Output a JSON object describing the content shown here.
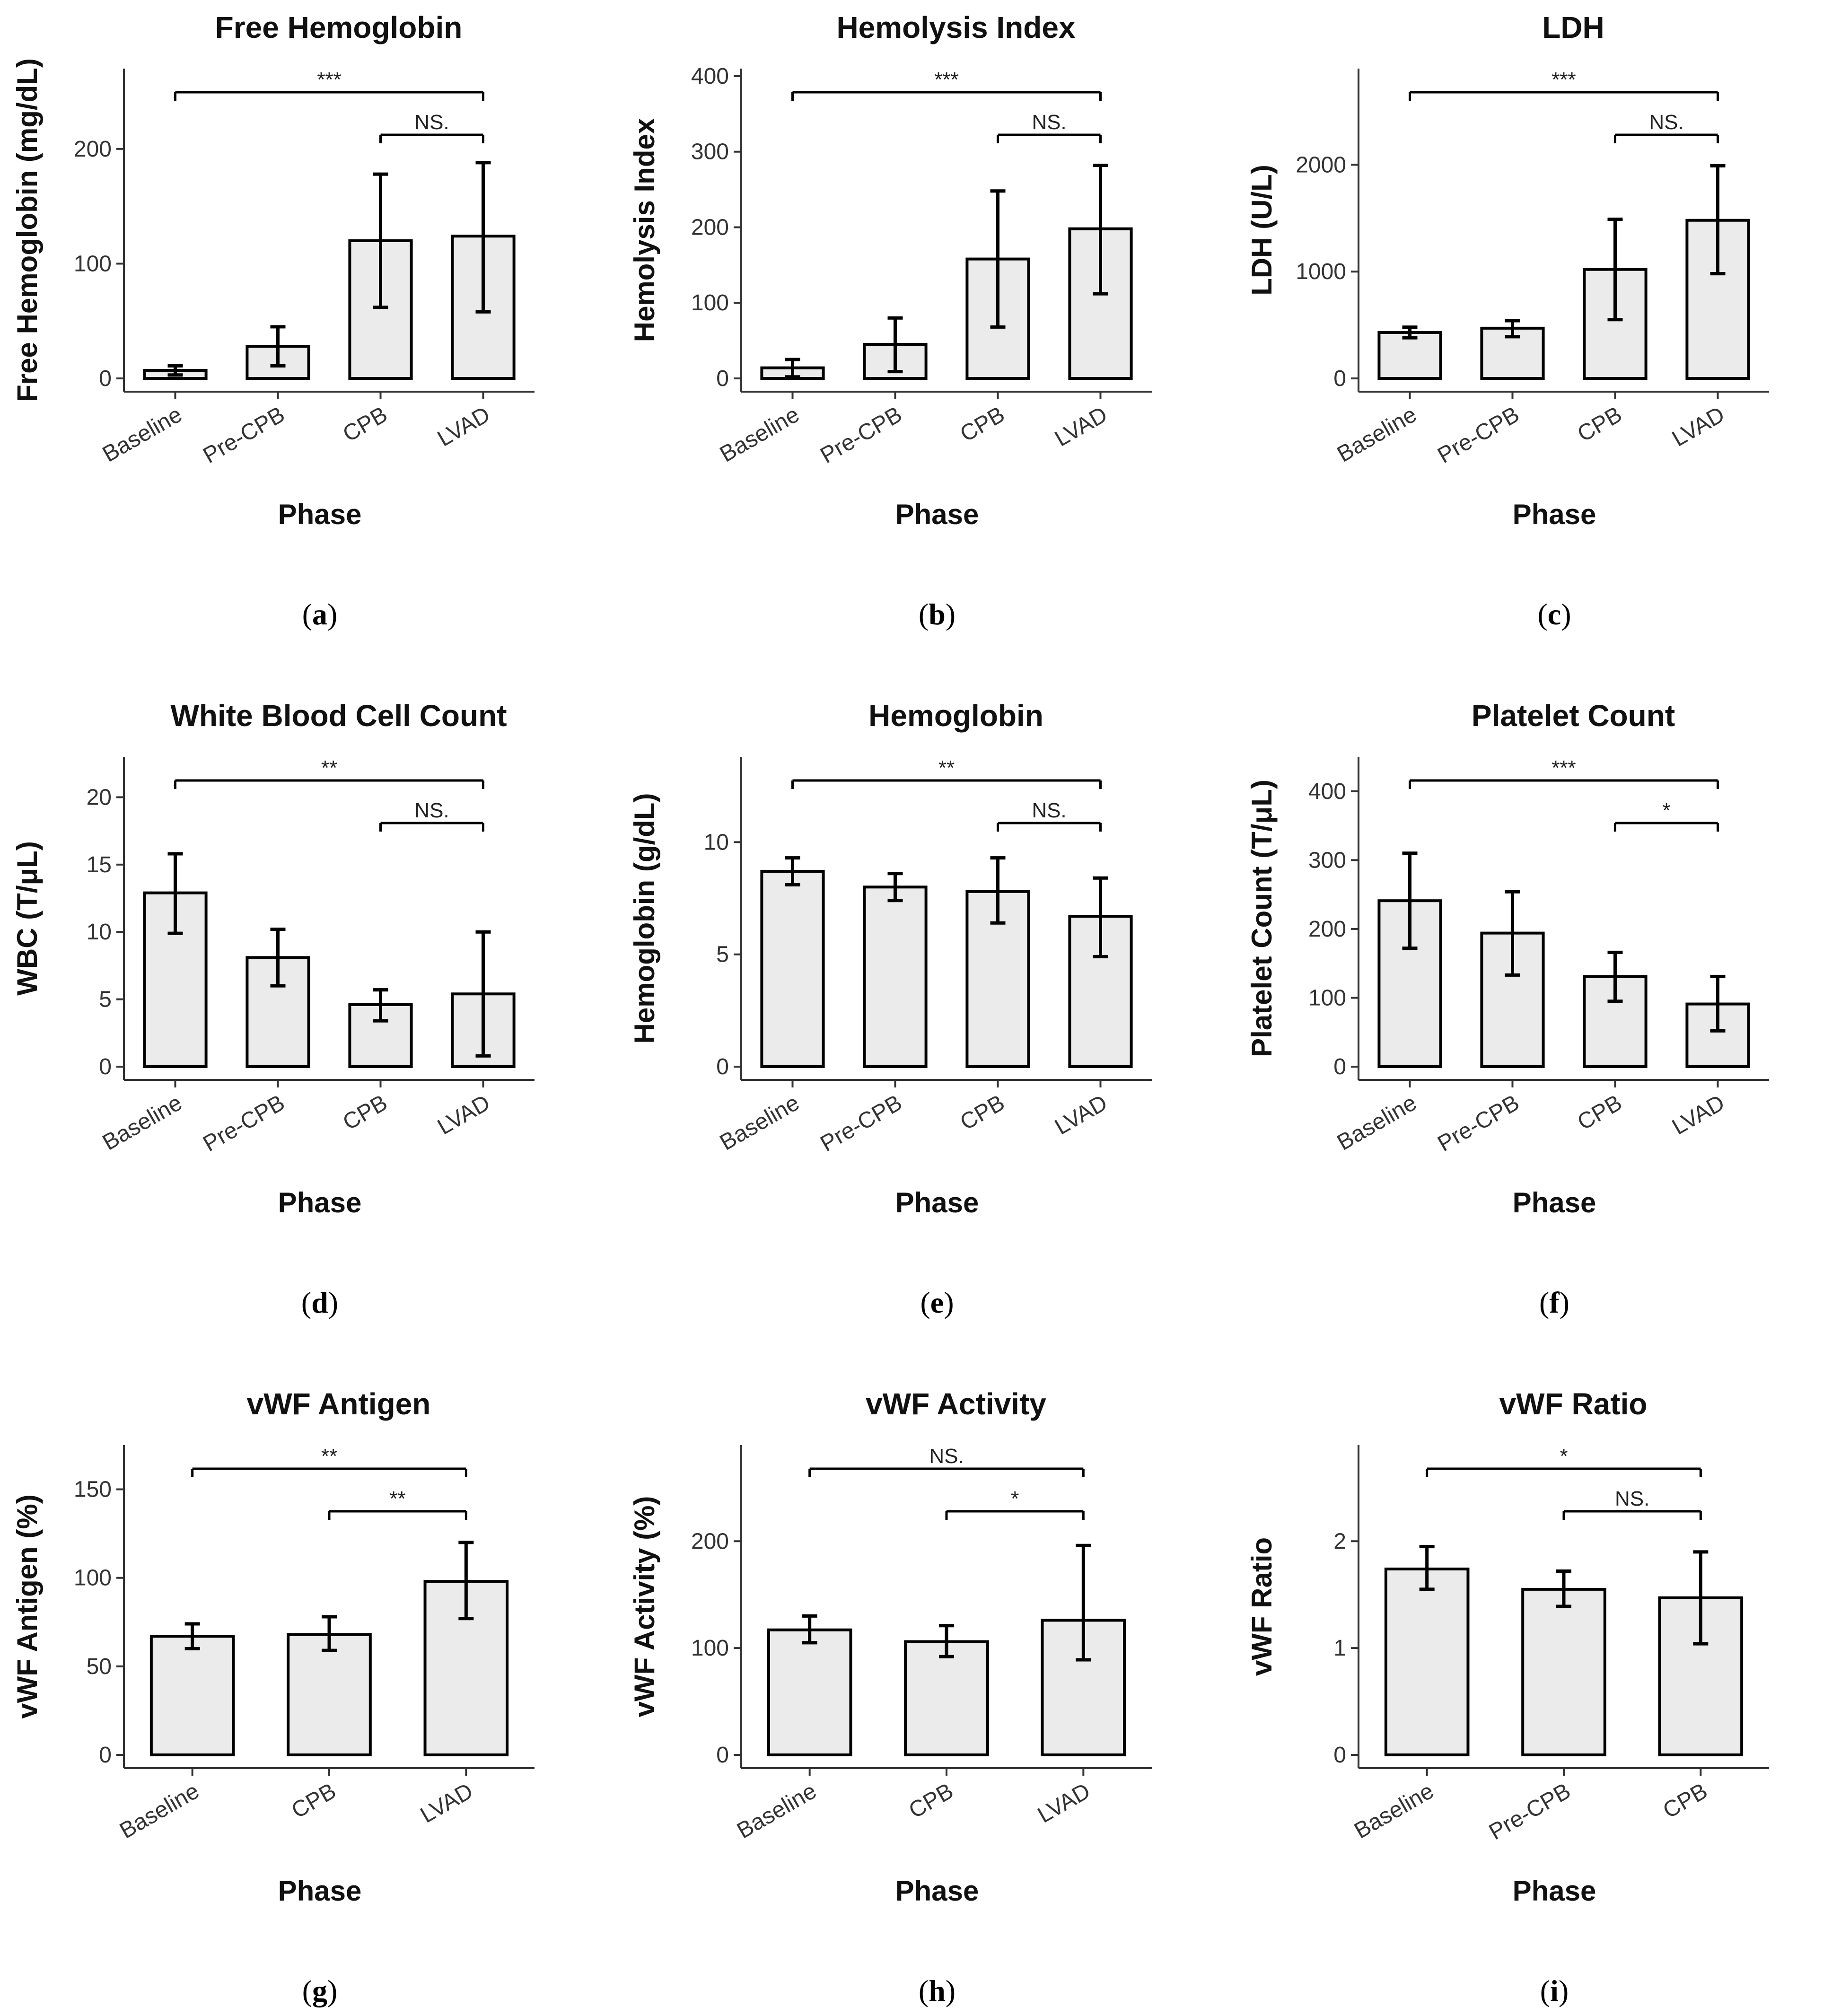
{
  "x_axis_title": "Phase",
  "chart_data": [
    {
      "panel": "a",
      "type": "bar",
      "title": "Free Hemoglobin",
      "xlabel": "Phase",
      "ylabel": "Free Hemoglobin (mg/dL)",
      "categories": [
        "Baseline",
        "Pre-CPB",
        "CPB",
        "LVAD"
      ],
      "values": [
        7,
        28,
        120,
        124
      ],
      "error_low": [
        3,
        11,
        62,
        58
      ],
      "error_high": [
        11,
        45,
        178,
        188
      ],
      "ylim": [
        0,
        270
      ],
      "yticks": [
        0,
        100,
        200
      ],
      "comparisons": [
        {
          "from": "Baseline",
          "to": "LVAD",
          "label": "***"
        },
        {
          "from": "CPB",
          "to": "LVAD",
          "label": "NS."
        }
      ]
    },
    {
      "panel": "b",
      "type": "bar",
      "title": "Hemolysis Index",
      "xlabel": "Phase",
      "ylabel": "Hemolysis Index",
      "categories": [
        "Baseline",
        "Pre-CPB",
        "CPB",
        "LVAD"
      ],
      "values": [
        14,
        45,
        158,
        198
      ],
      "error_low": [
        2,
        9,
        68,
        112
      ],
      "error_high": [
        25,
        80,
        248,
        282
      ],
      "ylim": [
        0,
        410
      ],
      "yticks": [
        0,
        100,
        200,
        300,
        400
      ],
      "comparisons": [
        {
          "from": "Baseline",
          "to": "LVAD",
          "label": "***"
        },
        {
          "from": "CPB",
          "to": "LVAD",
          "label": "NS."
        }
      ]
    },
    {
      "panel": "c",
      "type": "bar",
      "title": "LDH",
      "xlabel": "Phase",
      "ylabel": "LDH (U/L)",
      "categories": [
        "Baseline",
        "Pre-CPB",
        "CPB",
        "LVAD"
      ],
      "values": [
        430,
        470,
        1020,
        1480
      ],
      "error_low": [
        380,
        390,
        550,
        980
      ],
      "error_high": [
        480,
        540,
        1490,
        1990
      ],
      "ylim": [
        0,
        2900
      ],
      "yticks": [
        0,
        1000,
        2000
      ],
      "comparisons": [
        {
          "from": "Baseline",
          "to": "LVAD",
          "label": "***"
        },
        {
          "from": "CPB",
          "to": "LVAD",
          "label": "NS."
        }
      ]
    },
    {
      "panel": "d",
      "type": "bar",
      "title": "White Blood Cell Count",
      "xlabel": "Phase",
      "ylabel": "WBC (T/μL)",
      "categories": [
        "Baseline",
        "Pre-CPB",
        "CPB",
        "LVAD"
      ],
      "values": [
        12.9,
        8.1,
        4.6,
        5.4
      ],
      "error_low": [
        9.9,
        6.0,
        3.4,
        0.8
      ],
      "error_high": [
        15.8,
        10.2,
        5.7,
        10.0
      ],
      "ylim": [
        0,
        23
      ],
      "yticks": [
        0,
        5,
        10,
        15,
        20
      ],
      "comparisons": [
        {
          "from": "Baseline",
          "to": "LVAD",
          "label": "**"
        },
        {
          "from": "CPB",
          "to": "LVAD",
          "label": "NS."
        }
      ]
    },
    {
      "panel": "e",
      "type": "bar",
      "title": "Hemoglobin",
      "xlabel": "Phase",
      "ylabel": "Hemoglobin (g/dL)",
      "categories": [
        "Baseline",
        "Pre-CPB",
        "CPB",
        "LVAD"
      ],
      "values": [
        8.7,
        8.0,
        7.8,
        6.7
      ],
      "error_low": [
        8.1,
        7.4,
        6.4,
        4.9
      ],
      "error_high": [
        9.3,
        8.6,
        9.3,
        8.4
      ],
      "ylim": [
        0,
        13.8
      ],
      "yticks": [
        0,
        5,
        10
      ],
      "comparisons": [
        {
          "from": "Baseline",
          "to": "LVAD",
          "label": "**"
        },
        {
          "from": "CPB",
          "to": "LVAD",
          "label": "NS."
        }
      ]
    },
    {
      "panel": "f",
      "type": "bar",
      "title": "Platelet Count",
      "xlabel": "Phase",
      "ylabel": "Platelet Count (T/μL)",
      "categories": [
        "Baseline",
        "Pre-CPB",
        "CPB",
        "LVAD"
      ],
      "values": [
        241,
        194,
        131,
        91
      ],
      "error_low": [
        172,
        133,
        95,
        52
      ],
      "error_high": [
        310,
        254,
        166,
        131
      ],
      "ylim": [
        0,
        450
      ],
      "yticks": [
        0,
        100,
        200,
        300,
        400
      ],
      "comparisons": [
        {
          "from": "Baseline",
          "to": "LVAD",
          "label": "***"
        },
        {
          "from": "CPB",
          "to": "LVAD",
          "label": "*"
        }
      ]
    },
    {
      "panel": "g",
      "type": "bar",
      "title": "vWF Antigen",
      "xlabel": "Phase",
      "ylabel": "vWF Antigen (%)",
      "categories": [
        "Baseline",
        "CPB",
        "LVAD"
      ],
      "values": [
        67,
        68,
        98
      ],
      "error_low": [
        60,
        59,
        77
      ],
      "error_high": [
        74,
        78,
        120
      ],
      "ylim": [
        0,
        175
      ],
      "yticks": [
        0,
        50,
        100,
        150
      ],
      "comparisons": [
        {
          "from": "Baseline",
          "to": "LVAD",
          "label": "**"
        },
        {
          "from": "CPB",
          "to": "LVAD",
          "label": "**"
        }
      ]
    },
    {
      "panel": "h",
      "type": "bar",
      "title": "vWF Activity",
      "xlabel": "Phase",
      "ylabel": "vWF Activity (%)",
      "categories": [
        "Baseline",
        "CPB",
        "LVAD"
      ],
      "values": [
        117,
        106,
        126
      ],
      "error_low": [
        105,
        92,
        89
      ],
      "error_high": [
        130,
        121,
        196
      ],
      "ylim": [
        0,
        290
      ],
      "yticks": [
        0,
        100,
        200
      ],
      "comparisons": [
        {
          "from": "Baseline",
          "to": "LVAD",
          "label": "NS."
        },
        {
          "from": "CPB",
          "to": "LVAD",
          "label": "*"
        }
      ]
    },
    {
      "panel": "i",
      "type": "bar",
      "title": "vWF Ratio",
      "xlabel": "Phase",
      "ylabel": "vWF Ratio",
      "categories": [
        "Baseline",
        "Pre-CPB",
        "CPB"
      ],
      "values": [
        1.74,
        1.55,
        1.47
      ],
      "error_low": [
        1.55,
        1.39,
        1.04
      ],
      "error_high": [
        1.95,
        1.72,
        1.9
      ],
      "ylim": [
        0,
        2.9
      ],
      "yticks": [
        0,
        1,
        2
      ],
      "comparisons": [
        {
          "from": "Baseline",
          "to": "CPB",
          "label": "*"
        },
        {
          "from": "Pre-CPB",
          "to": "CPB",
          "label": "NS."
        }
      ]
    }
  ]
}
